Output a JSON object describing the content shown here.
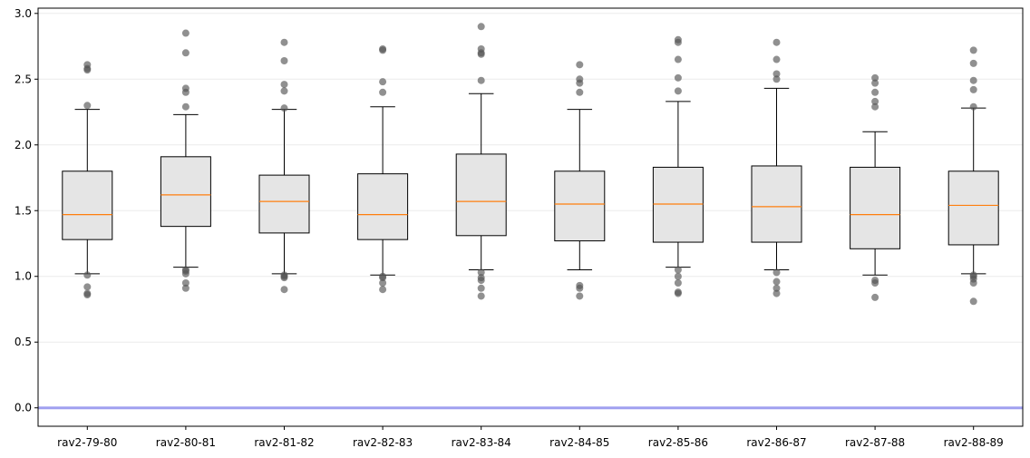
{
  "chart_data": {
    "type": "box",
    "title": "",
    "xlabel": "",
    "ylabel": "",
    "ylim": [
      -0.14,
      3.04
    ],
    "yticks": [
      0.0,
      0.5,
      1.0,
      1.5,
      2.0,
      2.5,
      3.0
    ],
    "ytick_labels": [
      "0.0",
      "0.5",
      "1.0",
      "1.5",
      "2.0",
      "2.5",
      "3.0"
    ],
    "grid": "horizontal",
    "reference_line": {
      "y": 0.0,
      "color": "#a0a0f0"
    },
    "colors": {
      "box_fill": "#e5e5e5",
      "median": "#ff7f0e",
      "outlier": "#555555"
    },
    "categories": [
      "rav2-79-80",
      "rav2-80-81",
      "rav2-81-82",
      "rav2-82-83",
      "rav2-83-84",
      "rav2-84-85",
      "rav2-85-86",
      "rav2-86-87",
      "rav2-87-88",
      "rav2-88-89"
    ],
    "boxes": [
      {
        "q1": 1.28,
        "median": 1.47,
        "q3": 1.8,
        "whisker_low": 1.02,
        "whisker_high": 2.27,
        "outliers": [
          2.61,
          2.58,
          2.57,
          2.3,
          1.01,
          0.92,
          0.87,
          0.86
        ]
      },
      {
        "q1": 1.38,
        "median": 1.62,
        "q3": 1.91,
        "whisker_low": 1.07,
        "whisker_high": 2.23,
        "outliers": [
          2.85,
          2.7,
          2.43,
          2.4,
          2.29,
          1.05,
          1.04,
          1.02,
          0.95,
          0.91
        ]
      },
      {
        "q1": 1.33,
        "median": 1.57,
        "q3": 1.77,
        "whisker_low": 1.02,
        "whisker_high": 2.27,
        "outliers": [
          2.78,
          2.64,
          2.46,
          2.41,
          2.28,
          1.01,
          1.0,
          0.99,
          0.9
        ]
      },
      {
        "q1": 1.28,
        "median": 1.47,
        "q3": 1.78,
        "whisker_low": 1.01,
        "whisker_high": 2.29,
        "outliers": [
          2.73,
          2.72,
          2.48,
          2.4,
          1.0,
          0.99,
          0.95,
          0.9
        ]
      },
      {
        "q1": 1.31,
        "median": 1.57,
        "q3": 1.93,
        "whisker_low": 1.05,
        "whisker_high": 2.39,
        "outliers": [
          2.9,
          2.73,
          2.7,
          2.69,
          2.49,
          1.03,
          0.99,
          0.97,
          0.91,
          0.85
        ]
      },
      {
        "q1": 1.27,
        "median": 1.55,
        "q3": 1.8,
        "whisker_low": 1.05,
        "whisker_high": 2.27,
        "outliers": [
          2.61,
          2.5,
          2.47,
          2.4,
          0.93,
          0.91,
          0.85
        ]
      },
      {
        "q1": 1.26,
        "median": 1.55,
        "q3": 1.83,
        "whisker_low": 1.07,
        "whisker_high": 2.33,
        "outliers": [
          2.8,
          2.78,
          2.65,
          2.51,
          2.41,
          1.05,
          1.0,
          0.95,
          0.88,
          0.87
        ]
      },
      {
        "q1": 1.26,
        "median": 1.53,
        "q3": 1.84,
        "whisker_low": 1.05,
        "whisker_high": 2.43,
        "outliers": [
          2.78,
          2.65,
          2.54,
          2.5,
          1.03,
          0.96,
          0.91,
          0.87
        ]
      },
      {
        "q1": 1.21,
        "median": 1.47,
        "q3": 1.83,
        "whisker_low": 1.01,
        "whisker_high": 2.1,
        "outliers": [
          2.51,
          2.47,
          2.4,
          2.33,
          2.29,
          0.97,
          0.95,
          0.84
        ]
      },
      {
        "q1": 1.24,
        "median": 1.54,
        "q3": 1.8,
        "whisker_low": 1.02,
        "whisker_high": 2.28,
        "outliers": [
          2.72,
          2.62,
          2.49,
          2.42,
          2.29,
          1.01,
          1.0,
          0.98,
          0.95,
          0.81
        ]
      }
    ]
  }
}
